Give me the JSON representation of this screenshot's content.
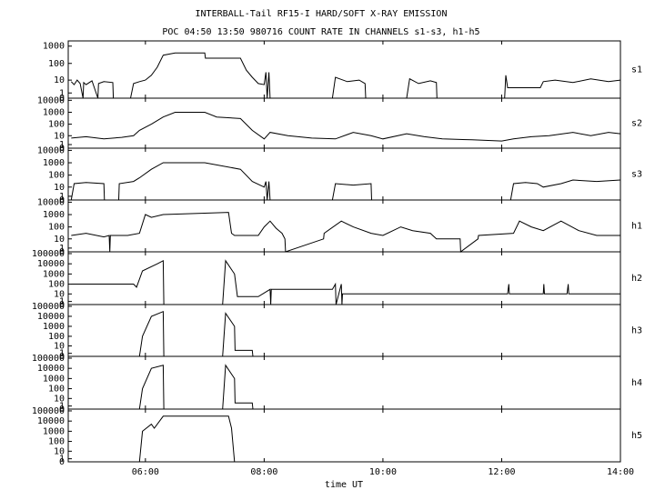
{
  "title": "INTERBALL-Tail RF15-I HARD/SOFT X-RAY EMISSION",
  "subtitle": "POC 04:50 13:50 980716  COUNT RATE IN CHANNELS s1-s3, h1-h5",
  "x_axis": {
    "label": "time UT",
    "xlim": [
      4.7,
      14.0
    ],
    "xticks": [
      {
        "value": 6,
        "label": "06:00"
      },
      {
        "value": 8,
        "label": "08:00"
      },
      {
        "value": 10,
        "label": "10:00"
      },
      {
        "value": 12,
        "label": "12:00"
      },
      {
        "value": 14,
        "label": "14:00"
      }
    ]
  },
  "chart_data": [
    {
      "type": "line",
      "label": "s1",
      "color": "#000000",
      "yscale": "log1p",
      "ylim": [
        0,
        2000
      ],
      "yticks": [
        0,
        1,
        10,
        100,
        1000
      ],
      "x": [
        4.75,
        4.8,
        4.85,
        4.9,
        4.95,
        4.96,
        5.0,
        5.1,
        5.2,
        5.21,
        5.3,
        5.45,
        5.46,
        5.75,
        5.8,
        5.9,
        6.0,
        6.1,
        6.2,
        6.3,
        6.5,
        7.0,
        7.01,
        7.6,
        7.7,
        7.8,
        7.9,
        8.0,
        8.03,
        8.05,
        8.08,
        8.1,
        9.15,
        9.2,
        9.4,
        9.6,
        9.7,
        9.71,
        10.4,
        10.45,
        10.6,
        10.8,
        10.9,
        10.91,
        12.05,
        12.07,
        12.1,
        12.65,
        12.7,
        12.9,
        13.2,
        13.5,
        13.8,
        14.0
      ],
      "values": [
        8,
        5,
        10,
        6,
        0,
        7,
        5,
        9,
        0,
        6,
        8,
        7,
        0,
        0,
        6,
        8,
        10,
        20,
        60,
        300,
        400,
        400,
        200,
        200,
        40,
        15,
        6,
        5,
        30,
        0,
        30,
        0,
        0,
        15,
        8,
        10,
        6,
        0,
        0,
        12,
        6,
        9,
        7,
        0,
        0,
        20,
        3,
        3,
        8,
        10,
        7,
        12,
        8,
        10
      ]
    },
    {
      "type": "line",
      "label": "s2",
      "color": "#000000",
      "yscale": "log1p",
      "ylim": [
        0,
        15000
      ],
      "yticks": [
        0,
        1,
        10,
        100,
        1000,
        10000
      ],
      "x": [
        4.75,
        5.0,
        5.3,
        5.6,
        5.8,
        5.9,
        6.1,
        6.3,
        6.5,
        7.0,
        7.2,
        7.6,
        7.8,
        8.0,
        8.1,
        8.4,
        8.8,
        9.2,
        9.5,
        9.8,
        10.0,
        10.4,
        10.7,
        11.0,
        11.5,
        12.0,
        12.2,
        12.5,
        12.8,
        13.2,
        13.5,
        13.8,
        14.0
      ],
      "values": [
        6,
        8,
        5,
        7,
        10,
        30,
        100,
        400,
        1000,
        1000,
        400,
        300,
        30,
        5,
        20,
        10,
        6,
        5,
        20,
        10,
        5,
        15,
        8,
        5,
        4,
        3,
        5,
        8,
        10,
        20,
        10,
        20,
        15
      ]
    },
    {
      "type": "line",
      "label": "s3",
      "color": "#000000",
      "yscale": "log1p",
      "ylim": [
        0,
        15000
      ],
      "yticks": [
        0,
        1,
        10,
        100,
        1000,
        10000
      ],
      "x": [
        4.75,
        4.8,
        5.0,
        5.3,
        5.31,
        5.55,
        5.56,
        5.8,
        5.9,
        6.1,
        6.3,
        6.5,
        7.0,
        7.6,
        7.8,
        8.0,
        8.03,
        8.05,
        8.08,
        8.1,
        9.15,
        9.2,
        9.5,
        9.8,
        9.81,
        12.15,
        12.2,
        12.4,
        12.6,
        12.7,
        13.0,
        13.2,
        13.6,
        14.0
      ],
      "values": [
        0,
        20,
        25,
        20,
        0,
        0,
        20,
        30,
        60,
        300,
        1000,
        1000,
        1000,
        300,
        30,
        10,
        30,
        0,
        30,
        0,
        0,
        20,
        15,
        20,
        0,
        0,
        20,
        25,
        20,
        10,
        20,
        40,
        30,
        40
      ]
    },
    {
      "type": "line",
      "label": "h1",
      "color": "#000000",
      "yscale": "log1p",
      "ylim": [
        0,
        15000
      ],
      "yticks": [
        0,
        1,
        10,
        100,
        1000,
        10000
      ],
      "x": [
        4.75,
        5.0,
        5.3,
        5.39,
        5.4,
        5.41,
        5.7,
        5.9,
        6.0,
        6.1,
        6.3,
        7.4,
        7.45,
        7.5,
        7.9,
        8.0,
        8.1,
        8.2,
        8.3,
        8.35,
        8.36,
        9.0,
        9.01,
        9.3,
        9.5,
        9.8,
        10.0,
        10.3,
        10.5,
        10.8,
        10.9,
        11.3,
        11.31,
        11.6,
        11.61,
        12.2,
        12.3,
        12.5,
        12.7,
        13.0,
        13.3,
        13.6,
        14.0
      ],
      "values": [
        20,
        30,
        15,
        20,
        0,
        20,
        20,
        30,
        1000,
        600,
        1000,
        1500,
        30,
        20,
        20,
        100,
        300,
        80,
        30,
        10,
        0,
        10,
        30,
        300,
        100,
        30,
        20,
        100,
        50,
        30,
        10,
        10,
        0,
        10,
        20,
        30,
        300,
        100,
        50,
        300,
        50,
        20,
        20
      ]
    },
    {
      "type": "line",
      "label": "h2",
      "color": "#000000",
      "yscale": "log1p",
      "ylim": [
        0,
        150000
      ],
      "yticks": [
        0,
        1,
        10,
        100,
        1000,
        10000,
        100000
      ],
      "x": [
        4.75,
        5.8,
        5.85,
        5.95,
        6.2,
        6.3,
        6.31,
        7.3,
        7.35,
        7.5,
        7.55,
        7.9,
        8.1,
        8.11,
        8.12,
        9.15,
        9.2,
        9.21,
        9.3,
        9.31,
        9.32,
        12.1,
        12.12,
        12.13,
        12.7,
        12.71,
        12.72,
        13.1,
        13.12,
        13.13,
        14.0
      ],
      "values": [
        100,
        100,
        50,
        2000,
        10000,
        20000,
        0,
        0,
        20000,
        1000,
        5,
        5,
        30,
        0,
        30,
        30,
        100,
        0,
        100,
        0,
        10,
        10,
        100,
        10,
        10,
        100,
        10,
        10,
        100,
        10,
        10
      ]
    },
    {
      "type": "line",
      "label": "h3",
      "color": "#000000",
      "yscale": "log1p",
      "ylim": [
        0,
        150000
      ],
      "yticks": [
        0,
        1,
        10,
        100,
        1000,
        10000,
        100000
      ],
      "x": [
        4.75,
        5.9,
        5.95,
        6.1,
        6.3,
        6.31,
        7.3,
        7.35,
        7.5,
        7.51,
        7.8,
        7.81
      ],
      "values": [
        0,
        0,
        100,
        10000,
        30000,
        0,
        0,
        20000,
        1000,
        3,
        3,
        0
      ]
    },
    {
      "type": "line",
      "label": "h4",
      "color": "#000000",
      "yscale": "log1p",
      "ylim": [
        0,
        150000
      ],
      "yticks": [
        0,
        1,
        10,
        100,
        1000,
        10000,
        100000
      ],
      "x": [
        4.75,
        5.9,
        5.95,
        6.1,
        6.3,
        6.31,
        7.3,
        7.35,
        7.5,
        7.51,
        7.8,
        7.81
      ],
      "values": [
        0,
        0,
        100,
        10000,
        20000,
        0,
        0,
        20000,
        1000,
        3,
        3,
        0
      ]
    },
    {
      "type": "line",
      "label": "h5",
      "color": "#000000",
      "yscale": "log1p",
      "ylim": [
        0,
        150000
      ],
      "yticks": [
        0,
        1,
        10,
        100,
        1000,
        10000,
        100000
      ],
      "x": [
        4.75,
        5.9,
        5.95,
        6.1,
        6.15,
        6.3,
        7.4,
        7.45,
        7.5
      ],
      "values": [
        0,
        0,
        1000,
        5000,
        2000,
        30000,
        30000,
        2000,
        0
      ]
    }
  ]
}
